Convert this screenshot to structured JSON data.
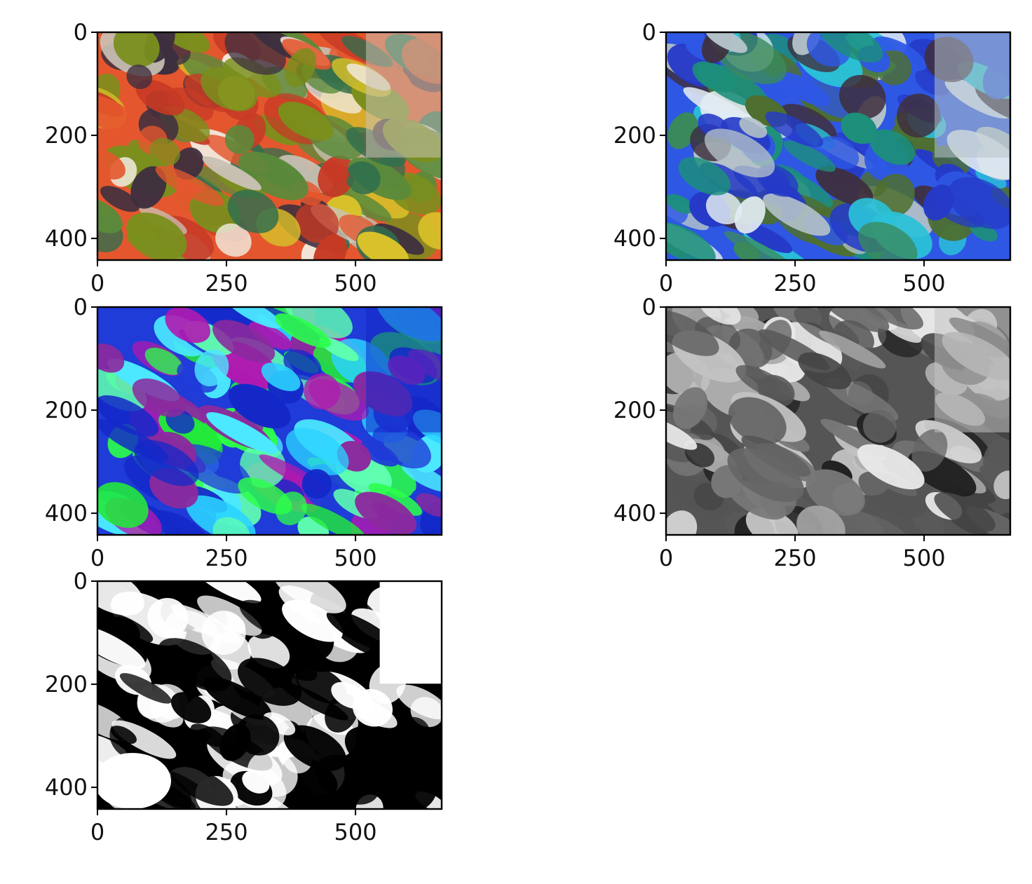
{
  "figure": {
    "background": "#ffffff"
  },
  "panels": [
    {
      "id": "original-rgb",
      "description_name": "original-vegetable-market-image",
      "palette": [
        "#7a8f1d",
        "#d8c12a",
        "#e4572e",
        "#c73a25",
        "#3d2f3f",
        "#5b8a3a",
        "#f3ece2",
        "#c9c2b5",
        "#2f6f4e"
      ],
      "style": "color"
    },
    {
      "id": "bgr-swapped",
      "description_name": "channel-swapped-image",
      "palette": [
        "#1d8f7a",
        "#2ac1d8",
        "#2e57e4",
        "#253ac7",
        "#3f2f3d",
        "#3a8a5b",
        "#e2ecf3",
        "#b5c2c9",
        "#4e6f2f"
      ],
      "style": "color"
    },
    {
      "id": "hsv-image",
      "description_name": "hsv-converted-image",
      "palette": [
        "#2bd3ff",
        "#22e93a",
        "#1f3bd8",
        "#4be8ff",
        "#2bff4a",
        "#8b2a9e",
        "#b01ab0",
        "#1428c8",
        "#60ffb0"
      ],
      "style": "color"
    },
    {
      "id": "grayscale",
      "description_name": "grayscale-image",
      "palette": [
        "#777777",
        "#aaaaaa",
        "#555555",
        "#444444",
        "#222222",
        "#666666",
        "#e8e8e8",
        "#c2c2c2",
        "#595959"
      ],
      "style": "gray"
    },
    {
      "id": "binary-threshold",
      "description_name": "binary-threshold-image",
      "palette": [
        "#000000",
        "#ffffff"
      ],
      "style": "binary"
    }
  ],
  "axes": {
    "x_ticks": [
      0,
      250,
      500
    ],
    "y_ticks": [
      0,
      200,
      400
    ],
    "x_range": [
      0,
      667
    ],
    "y_range": [
      0,
      442
    ]
  },
  "tick_labels": {
    "x": [
      "0",
      "250",
      "500"
    ],
    "y": [
      "0",
      "200",
      "400"
    ]
  }
}
